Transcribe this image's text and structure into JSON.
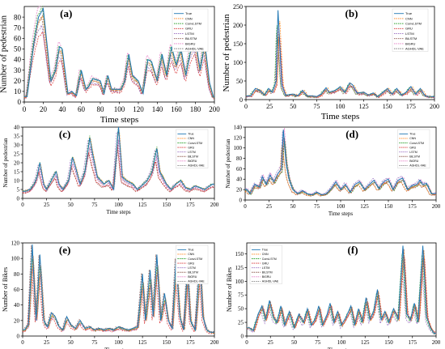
{
  "chart_data": [
    {
      "type": "line",
      "panel_label": "(a)",
      "xlabel": "Time steps",
      "ylabel": "Number of pedestrian",
      "xlim": [
        0,
        200
      ],
      "ylim": [
        0,
        90
      ],
      "xticks": [
        0,
        20,
        40,
        60,
        80,
        100,
        120,
        140,
        160,
        180,
        200
      ],
      "yticks": [
        0,
        10,
        20,
        30,
        40,
        50,
        60,
        70,
        80
      ],
      "legend_position": "top-right",
      "peaks": [
        [
          3,
          5
        ],
        [
          10,
          55
        ],
        [
          15,
          80
        ],
        [
          20,
          88
        ],
        [
          28,
          20
        ],
        [
          33,
          30
        ],
        [
          37,
          52
        ],
        [
          40,
          50
        ],
        [
          46,
          8
        ],
        [
          50,
          10
        ],
        [
          55,
          6
        ],
        [
          60,
          30
        ],
        [
          65,
          12
        ],
        [
          68,
          15
        ],
        [
          72,
          22
        ],
        [
          80,
          20
        ],
        [
          84,
          8
        ],
        [
          88,
          25
        ],
        [
          92,
          12
        ],
        [
          96,
          12
        ],
        [
          102,
          12
        ],
        [
          106,
          20
        ],
        [
          110,
          45
        ],
        [
          114,
          25
        ],
        [
          120,
          20
        ],
        [
          125,
          8
        ],
        [
          130,
          40
        ],
        [
          134,
          38
        ],
        [
          140,
          20
        ],
        [
          145,
          45
        ],
        [
          150,
          25
        ],
        [
          155,
          52
        ],
        [
          160,
          35
        ],
        [
          165,
          50
        ],
        [
          170,
          25
        ],
        [
          175,
          48
        ],
        [
          180,
          60
        ],
        [
          185,
          30
        ],
        [
          190,
          55
        ],
        [
          195,
          18
        ],
        [
          199,
          5
        ]
      ]
    },
    {
      "type": "line",
      "panel_label": "(b)",
      "xlabel": "Time steps",
      "ylabel": "Number of pedestrian",
      "xlim": [
        0,
        200
      ],
      "ylim": [
        0,
        250
      ],
      "xticks": [
        0,
        25,
        50,
        75,
        100,
        125,
        150,
        175,
        200
      ],
      "yticks": [
        0,
        50,
        100,
        150,
        200,
        250
      ],
      "legend_position": "top-right",
      "peaks": [
        [
          5,
          10
        ],
        [
          10,
          30
        ],
        [
          15,
          25
        ],
        [
          20,
          12
        ],
        [
          24,
          30
        ],
        [
          28,
          20
        ],
        [
          32,
          50
        ],
        [
          34,
          240
        ],
        [
          38,
          40
        ],
        [
          42,
          12
        ],
        [
          50,
          15
        ],
        [
          55,
          10
        ],
        [
          60,
          25
        ],
        [
          65,
          10
        ],
        [
          70,
          10
        ],
        [
          75,
          8
        ],
        [
          80,
          15
        ],
        [
          85,
          32
        ],
        [
          88,
          20
        ],
        [
          95,
          25
        ],
        [
          100,
          35
        ],
        [
          105,
          20
        ],
        [
          110,
          45
        ],
        [
          113,
          40
        ],
        [
          118,
          18
        ],
        [
          125,
          20
        ],
        [
          130,
          12
        ],
        [
          135,
          18
        ],
        [
          140,
          8
        ],
        [
          150,
          30
        ],
        [
          155,
          15
        ],
        [
          160,
          30
        ],
        [
          165,
          12
        ],
        [
          170,
          20
        ],
        [
          175,
          35
        ],
        [
          180,
          15
        ],
        [
          185,
          30
        ],
        [
          190,
          10
        ],
        [
          195,
          8
        ]
      ]
    },
    {
      "type": "line",
      "panel_label": "(c)",
      "xlabel": "Time steps",
      "ylabel": "Number of pedestrian",
      "xlim": [
        0,
        200
      ],
      "ylim": [
        0,
        40
      ],
      "xticks": [
        0,
        25,
        50,
        75,
        100,
        125,
        150,
        175,
        200
      ],
      "yticks": [
        0,
        5,
        10,
        15,
        20,
        25,
        30,
        35,
        40
      ],
      "legend_position": "top-right",
      "peaks": [
        [
          3,
          4
        ],
        [
          8,
          5
        ],
        [
          12,
          8
        ],
        [
          15,
          12
        ],
        [
          18,
          20
        ],
        [
          22,
          8
        ],
        [
          25,
          5
        ],
        [
          30,
          10
        ],
        [
          35,
          15
        ],
        [
          38,
          8
        ],
        [
          42,
          5
        ],
        [
          48,
          10
        ],
        [
          52,
          23
        ],
        [
          55,
          18
        ],
        [
          60,
          8
        ],
        [
          65,
          15
        ],
        [
          70,
          34
        ],
        [
          73,
          25
        ],
        [
          78,
          12
        ],
        [
          85,
          8
        ],
        [
          90,
          10
        ],
        [
          95,
          5
        ],
        [
          100,
          40
        ],
        [
          104,
          12
        ],
        [
          108,
          10
        ],
        [
          115,
          8
        ],
        [
          120,
          5
        ],
        [
          130,
          10
        ],
        [
          135,
          15
        ],
        [
          140,
          28
        ],
        [
          143,
          15
        ],
        [
          150,
          8
        ],
        [
          155,
          5
        ],
        [
          160,
          8
        ],
        [
          165,
          10
        ],
        [
          170,
          6
        ],
        [
          175,
          5
        ],
        [
          180,
          7
        ],
        [
          190,
          5
        ],
        [
          198,
          8
        ]
      ]
    },
    {
      "type": "line",
      "panel_label": "(d)",
      "xlabel": "Time steps",
      "ylabel": "Number of pedestrian",
      "xlim": [
        0,
        200
      ],
      "ylim": [
        0,
        140
      ],
      "xticks": [
        0,
        25,
        50,
        75,
        100,
        125,
        150,
        175,
        200
      ],
      "yticks": [
        0,
        20,
        40,
        60,
        80,
        100,
        120,
        140
      ],
      "legend_position": "top-right",
      "peaks": [
        [
          2,
          20
        ],
        [
          5,
          12
        ],
        [
          10,
          30
        ],
        [
          15,
          25
        ],
        [
          18,
          45
        ],
        [
          22,
          30
        ],
        [
          26,
          48
        ],
        [
          30,
          35
        ],
        [
          34,
          50
        ],
        [
          38,
          60
        ],
        [
          40,
          135
        ],
        [
          43,
          70
        ],
        [
          46,
          40
        ],
        [
          50,
          20
        ],
        [
          55,
          12
        ],
        [
          60,
          18
        ],
        [
          65,
          12
        ],
        [
          70,
          10
        ],
        [
          75,
          15
        ],
        [
          80,
          10
        ],
        [
          85,
          12
        ],
        [
          90,
          22
        ],
        [
          95,
          35
        ],
        [
          100,
          20
        ],
        [
          105,
          30
        ],
        [
          110,
          15
        ],
        [
          115,
          30
        ],
        [
          120,
          35
        ],
        [
          125,
          20
        ],
        [
          130,
          30
        ],
        [
          135,
          38
        ],
        [
          140,
          22
        ],
        [
          145,
          35
        ],
        [
          150,
          40
        ],
        [
          155,
          20
        ],
        [
          160,
          38
        ],
        [
          165,
          42
        ],
        [
          170,
          20
        ],
        [
          175,
          28
        ],
        [
          180,
          30
        ],
        [
          183,
          38
        ],
        [
          186,
          30
        ],
        [
          190,
          32
        ],
        [
          195,
          12
        ]
      ]
    },
    {
      "type": "line",
      "panel_label": "(e)",
      "xlabel": "Time steps",
      "ylabel": "Number of Bikes",
      "xlim": [
        0,
        200
      ],
      "ylim": [
        0,
        120
      ],
      "xticks": [
        0,
        25,
        50,
        75,
        100,
        125,
        150,
        175,
        200
      ],
      "yticks": [
        0,
        20,
        40,
        60,
        80,
        100,
        120
      ],
      "legend_position": "top-right",
      "peaks": [
        [
          2,
          8
        ],
        [
          6,
          15
        ],
        [
          10,
          118
        ],
        [
          14,
          20
        ],
        [
          18,
          105
        ],
        [
          22,
          20
        ],
        [
          26,
          12
        ],
        [
          30,
          30
        ],
        [
          34,
          25
        ],
        [
          38,
          12
        ],
        [
          42,
          8
        ],
        [
          46,
          25
        ],
        [
          50,
          15
        ],
        [
          55,
          10
        ],
        [
          60,
          20
        ],
        [
          65,
          10
        ],
        [
          70,
          12
        ],
        [
          75,
          8
        ],
        [
          80,
          10
        ],
        [
          85,
          8
        ],
        [
          90,
          10
        ],
        [
          95,
          8
        ],
        [
          100,
          12
        ],
        [
          105,
          10
        ],
        [
          110,
          8
        ],
        [
          115,
          10
        ],
        [
          120,
          12
        ],
        [
          125,
          80
        ],
        [
          128,
          20
        ],
        [
          133,
          85
        ],
        [
          136,
          25
        ],
        [
          140,
          105
        ],
        [
          144,
          20
        ],
        [
          148,
          55
        ],
        [
          152,
          20
        ],
        [
          156,
          10
        ],
        [
          160,
          100
        ],
        [
          164,
          25
        ],
        [
          168,
          8
        ],
        [
          172,
          90
        ],
        [
          175,
          20
        ],
        [
          180,
          8
        ],
        [
          185,
          100
        ],
        [
          188,
          25
        ],
        [
          192,
          8
        ],
        [
          196,
          5
        ]
      ]
    },
    {
      "type": "line",
      "panel_label": "(f)",
      "xlabel": "Time steps",
      "ylabel": "Number of Bikes",
      "xlim": [
        0,
        200
      ],
      "ylim": [
        0,
        170
      ],
      "xticks": [
        0,
        25,
        50,
        75,
        100,
        125,
        150,
        175,
        200
      ],
      "yticks": [
        0,
        25,
        50,
        75,
        100,
        125,
        150
      ],
      "legend_position": "top-left",
      "peaks": [
        [
          3,
          15
        ],
        [
          7,
          10
        ],
        [
          12,
          40
        ],
        [
          16,
          55
        ],
        [
          20,
          30
        ],
        [
          24,
          65
        ],
        [
          28,
          35
        ],
        [
          32,
          25
        ],
        [
          36,
          55
        ],
        [
          40,
          20
        ],
        [
          45,
          45
        ],
        [
          50,
          15
        ],
        [
          55,
          40
        ],
        [
          60,
          25
        ],
        [
          64,
          50
        ],
        [
          68,
          20
        ],
        [
          72,
          30
        ],
        [
          76,
          55
        ],
        [
          80,
          20
        ],
        [
          85,
          40
        ],
        [
          88,
          60
        ],
        [
          92,
          25
        ],
        [
          96,
          45
        ],
        [
          100,
          20
        ],
        [
          105,
          35
        ],
        [
          110,
          55
        ],
        [
          114,
          20
        ],
        [
          118,
          50
        ],
        [
          122,
          25
        ],
        [
          126,
          70
        ],
        [
          130,
          30
        ],
        [
          134,
          45
        ],
        [
          138,
          85
        ],
        [
          142,
          30
        ],
        [
          146,
          45
        ],
        [
          150,
          25
        ],
        [
          155,
          50
        ],
        [
          160,
          30
        ],
        [
          165,
          165
        ],
        [
          169,
          40
        ],
        [
          173,
          30
        ],
        [
          177,
          60
        ],
        [
          181,
          25
        ],
        [
          186,
          165
        ],
        [
          190,
          35
        ],
        [
          194,
          15
        ],
        [
          198,
          5
        ]
      ]
    }
  ],
  "legend": {
    "labels": [
      "True",
      "CNN",
      "ConvLSTM",
      "GRU",
      "LSTM",
      "BiLSTM",
      "BiGRU",
      "AGHDL-VAE"
    ],
    "colors": [
      "#1f77b4",
      "#ff7f0e",
      "#2ca02c",
      "#d62728",
      "#9467bd",
      "#8c564b",
      "#e377c2",
      "#7f7f7f"
    ]
  }
}
